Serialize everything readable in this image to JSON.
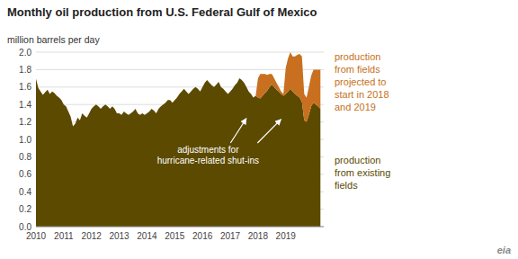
{
  "chart_data": {
    "type": "area",
    "stacked": true,
    "grid": true,
    "title": "Monthly oil production from U.S. Federal Gulf of Mexico",
    "y_label": "million barrels per day",
    "xlim": [
      2010,
      2020.37
    ],
    "xticks": [
      2010,
      2011,
      2012,
      2013,
      2014,
      2015,
      2016,
      2017,
      2018,
      2019
    ],
    "ylim": [
      0,
      2.0
    ],
    "yticks": [
      {
        "value": 0.0,
        "label": "0.0"
      },
      0.2,
      0.4,
      0.6,
      0.8,
      {
        "value": 1.0,
        "label": "1.0"
      },
      1.2,
      1.4,
      1.6,
      1.8,
      {
        "value": 2.0,
        "label": "2.0"
      }
    ],
    "annotations": [
      {
        "text": "adjustments for\nhurricane-related shut-ins",
        "x": 2016.2,
        "y": 0.82,
        "arrows": [
          {
            "x": 2017.58,
            "y": 1.24
          },
          {
            "x": 2018.83,
            "y": 1.23
          }
        ]
      },
      {
        "text": "eia"
      }
    ],
    "x": [
      2010,
      2010.0833333333333,
      2010.1666666666667,
      2010.25,
      2010.3333333333333,
      2010.4166666666667,
      2010.5,
      2010.5833333333333,
      2010.6666666666667,
      2010.75,
      2010.8333333333333,
      2010.9166666666667,
      2011,
      2011.0833333333333,
      2011.1666666666667,
      2011.25,
      2011.3333333333333,
      2011.4166666666667,
      2011.5,
      2011.5833333333333,
      2011.6666666666667,
      2011.75,
      2011.8333333333333,
      2011.9166666666667,
      2012,
      2012.0833333333333,
      2012.1666666666667,
      2012.25,
      2012.3333333333333,
      2012.4166666666667,
      2012.5,
      2012.5833333333333,
      2012.6666666666667,
      2012.75,
      2012.8333333333333,
      2012.9166666666667,
      2013,
      2013.0833333333333,
      2013.1666666666667,
      2013.25,
      2013.3333333333333,
      2013.4166666666667,
      2013.5,
      2013.5833333333333,
      2013.6666666666667,
      2013.75,
      2013.8333333333333,
      2013.9166666666667,
      2014,
      2014.0833333333333,
      2014.1666666666667,
      2014.25,
      2014.3333333333333,
      2014.4166666666667,
      2014.5,
      2014.5833333333333,
      2014.6666666666667,
      2014.75,
      2014.8333333333333,
      2014.9166666666667,
      2015,
      2015.0833333333333,
      2015.1666666666667,
      2015.25,
      2015.3333333333333,
      2015.4166666666667,
      2015.5,
      2015.5833333333333,
      2015.6666666666667,
      2015.75,
      2015.8333333333333,
      2015.9166666666667,
      2016,
      2016.0833333333333,
      2016.1666666666667,
      2016.25,
      2016.3333333333333,
      2016.4166666666667,
      2016.5,
      2016.5833333333333,
      2016.6666666666667,
      2016.75,
      2016.8333333333333,
      2016.9166666666667,
      2017,
      2017.0833333333333,
      2017.1666666666667,
      2017.25,
      2017.3333333333333,
      2017.4166666666667,
      2017.5,
      2017.5833333333333,
      2017.6666666666667,
      2017.75,
      2017.8333333333333,
      2017.9166666666667,
      2018,
      2018.0833333333333,
      2018.1666666666667,
      2018.25,
      2018.3333333333333,
      2018.4166666666667,
      2018.5,
      2018.5833333333333,
      2018.6666666666667,
      2018.75,
      2018.8333333333333,
      2018.9166666666667,
      2019,
      2019.0833333333333,
      2019.1666666666667,
      2019.25,
      2019.3333333333333,
      2019.4166666666667,
      2019.5,
      2019.5833333333333,
      2019.6666666666667,
      2019.75,
      2019.8333333333333,
      2019.9166666666667,
      2020,
      2020.0833333333333,
      2020.1666666666667,
      2020.25
    ],
    "series": [
      {
        "name": "production\nfrom existing\nfields",
        "color": "#5c4a00",
        "values": [
          1.695,
          1.59,
          1.55,
          1.51,
          1.54,
          1.57,
          1.52,
          1.55,
          1.53,
          1.5,
          1.48,
          1.45,
          1.4,
          1.38,
          1.32,
          1.26,
          1.15,
          1.18,
          1.25,
          1.22,
          1.3,
          1.27,
          1.25,
          1.3,
          1.35,
          1.38,
          1.4,
          1.38,
          1.35,
          1.38,
          1.4,
          1.38,
          1.35,
          1.38,
          1.35,
          1.3,
          1.3,
          1.28,
          1.32,
          1.3,
          1.28,
          1.3,
          1.32,
          1.35,
          1.3,
          1.28,
          1.3,
          1.28,
          1.3,
          1.32,
          1.35,
          1.33,
          1.3,
          1.35,
          1.38,
          1.4,
          1.42,
          1.45,
          1.45,
          1.42,
          1.45,
          1.48,
          1.52,
          1.55,
          1.58,
          1.55,
          1.52,
          1.55,
          1.58,
          1.6,
          1.58,
          1.55,
          1.6,
          1.65,
          1.68,
          1.65,
          1.62,
          1.6,
          1.63,
          1.66,
          1.6,
          1.58,
          1.55,
          1.52,
          1.55,
          1.58,
          1.62,
          1.65,
          1.7,
          1.68,
          1.65,
          1.6,
          1.55,
          1.52,
          1.48,
          1.5,
          1.48,
          1.47,
          1.5,
          1.53,
          1.56,
          1.6,
          1.63,
          1.6,
          1.57,
          1.55,
          1.52,
          1.5,
          1.52,
          1.55,
          1.58,
          1.55,
          1.52,
          1.5,
          1.48,
          1.43,
          1.22,
          1.2,
          1.28,
          1.38,
          1.42,
          1.4,
          1.38,
          1.35
        ]
      },
      {
        "name": "production\nfrom fields\nprojected to\nstart in 2018\nand 2019",
        "color": "#c87020",
        "values": [
          0,
          0,
          0,
          0,
          0,
          0,
          0,
          0,
          0,
          0,
          0,
          0,
          0,
          0,
          0,
          0,
          0,
          0,
          0,
          0,
          0,
          0,
          0,
          0,
          0,
          0,
          0,
          0,
          0,
          0,
          0,
          0,
          0,
          0,
          0,
          0,
          0,
          0,
          0,
          0,
          0,
          0,
          0,
          0,
          0,
          0,
          0,
          0,
          0,
          0,
          0,
          0,
          0,
          0,
          0,
          0,
          0,
          0,
          0,
          0,
          0,
          0,
          0,
          0,
          0,
          0,
          0,
          0,
          0,
          0,
          0,
          0,
          0,
          0,
          0,
          0,
          0,
          0,
          0,
          0,
          0,
          0,
          0,
          0,
          0,
          0,
          0,
          0,
          0,
          0,
          0,
          0,
          0,
          0,
          0,
          0,
          0.22,
          0.28,
          0.25,
          0.22,
          0.18,
          0.15,
          0.12,
          0.1,
          0.08,
          0.05,
          0.03,
          0.02,
          0.3,
          0.38,
          0.42,
          0.4,
          0.43,
          0.47,
          0.5,
          0.52,
          0.3,
          0.28,
          0.32,
          0.35,
          0.38,
          0.4,
          0.42,
          0.45
        ]
      }
    ]
  }
}
